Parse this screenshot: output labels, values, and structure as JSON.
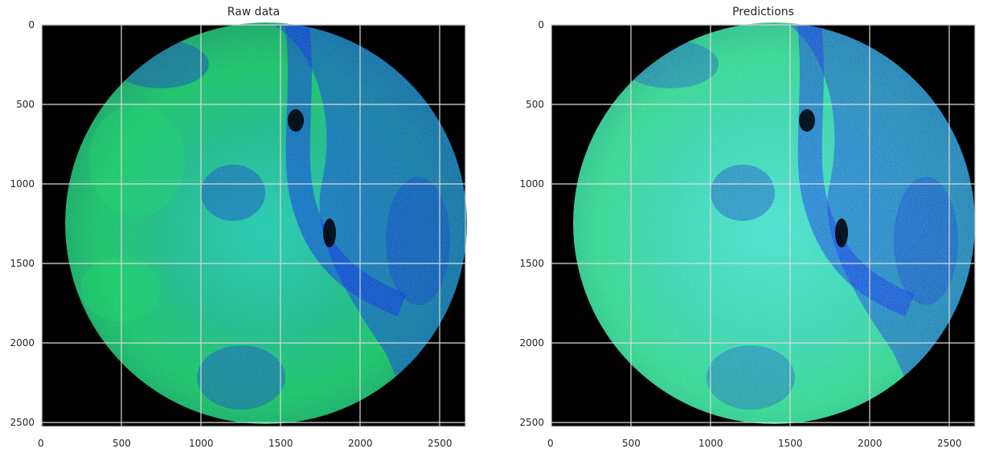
{
  "figure": {
    "panels": [
      {
        "title": "Raw data",
        "image_description_icon": "fluorescence-tissue-core-raw",
        "x_ticks": [
          "0",
          "500",
          "1000",
          "1500",
          "2000",
          "2500"
        ],
        "y_ticks": [
          "0",
          "500",
          "1000",
          "1500",
          "2000",
          "2500"
        ],
        "x_range": [
          0,
          2660
        ],
        "y_range": [
          2530,
          0
        ]
      },
      {
        "title": "Predictions",
        "image_description_icon": "fluorescence-tissue-core-predictions",
        "x_ticks": [
          "0",
          "500",
          "1000",
          "1500",
          "2000",
          "2500"
        ],
        "y_ticks": [
          "0",
          "500",
          "1000",
          "1500",
          "2000",
          "2500"
        ],
        "x_range": [
          0,
          2660
        ],
        "y_range": [
          2530,
          0
        ]
      }
    ],
    "colors": {
      "background": "#000000",
      "blue_channel": "#1e3cff",
      "green_channel": "#2edc6a",
      "cyan_mix": "#33d6c8",
      "grid": "#d9d9d9",
      "frame": "#cccccc"
    }
  }
}
